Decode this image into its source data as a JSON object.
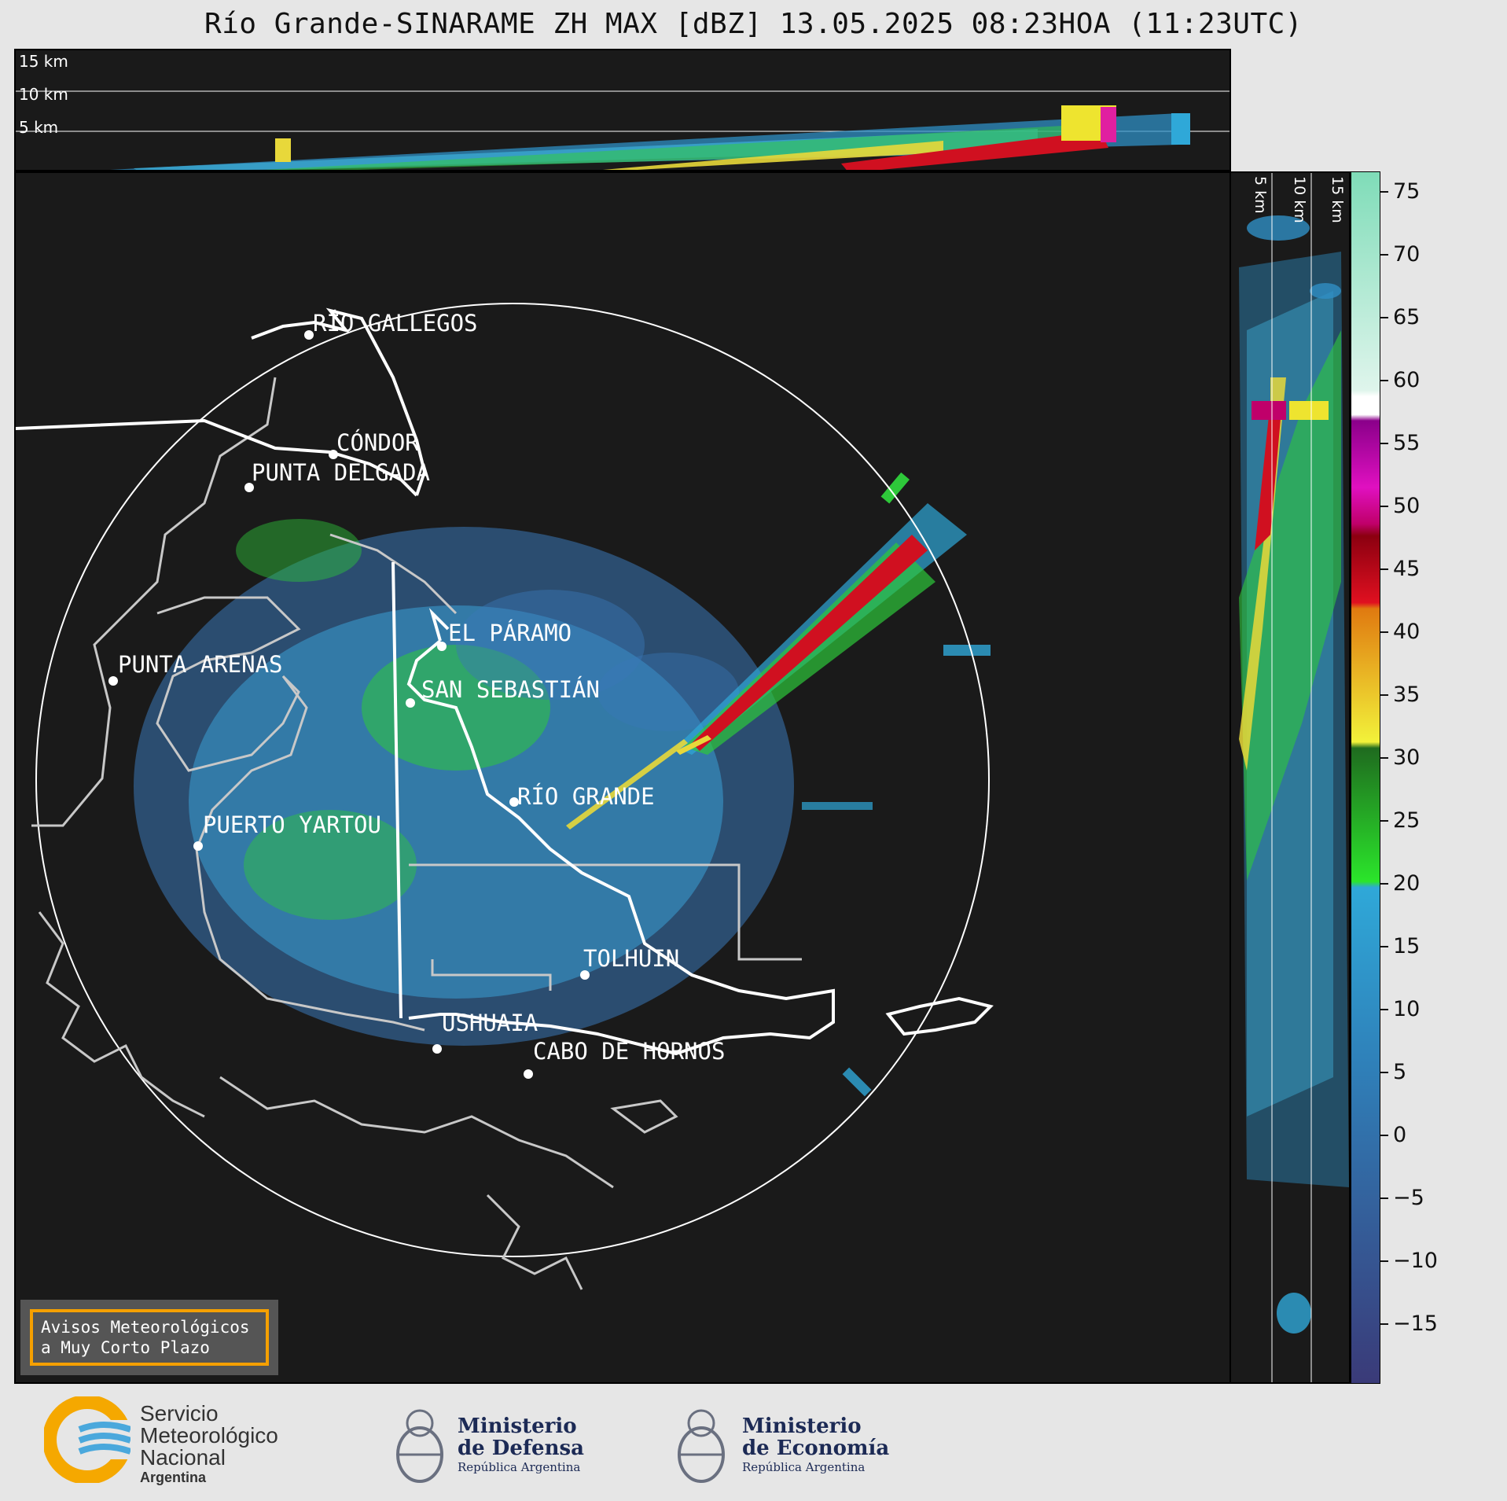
{
  "header": {
    "title": "Río Grande-SINARAME ZH MAX [dBZ] 13.05.2025 08:23HOA (11:23UTC)"
  },
  "top_panel": {
    "altitude_labels": [
      "15 km",
      "10 km",
      "5 km"
    ]
  },
  "side_panel": {
    "altitude_labels": [
      "5 km",
      "10 km",
      "15 km"
    ]
  },
  "colorbar": {
    "unit": "dBZ",
    "tick_labels": [
      "75",
      "70",
      "65",
      "60",
      "55",
      "50",
      "45",
      "40",
      "35",
      "30",
      "25",
      "20",
      "15",
      "10",
      "5",
      "0",
      "−5",
      "−10",
      "−15"
    ],
    "colors": {
      "range_neg20_to_18": "#3a4a88 → #2fa8d8",
      "range_18_to_30": "#2be52b → #1f6b1f",
      "range_30_to_43": "#f2f23a → #e07a10",
      "range_43_to_50": "#e01020 → #8b0010",
      "range_50_to_58": "#c0006a → #8a008a",
      "range_58_to_61": "#ffffff",
      "range_61_to_77": "#dff5ec → #7fdcb8"
    }
  },
  "map": {
    "cities": [
      {
        "name": "RÍO GALLEGOS"
      },
      {
        "name": "CÓNDOR"
      },
      {
        "name": "PUNTA DELGADA"
      },
      {
        "name": "EL PÁRAMO"
      },
      {
        "name": "PUNTA ARENAS"
      },
      {
        "name": "SAN SEBASTIÁN"
      },
      {
        "name": "RÍO GRANDE"
      },
      {
        "name": "PUERTO YARTOU"
      },
      {
        "name": "TOLHUIN"
      },
      {
        "name": "USHUAIA"
      },
      {
        "name": "CABO DE HORNOS"
      }
    ],
    "warning_box": {
      "line1": "Avisos Meteorológicos",
      "line2": "a Muy Corto Plazo"
    }
  },
  "footer": {
    "smn": {
      "line1": "Servicio",
      "line2": "Meteorológico",
      "line3": "Nacional",
      "line4": "Argentina"
    },
    "defensa": {
      "line1": "Ministerio",
      "line2": "de Defensa",
      "line3": "República Argentina"
    },
    "economia": {
      "line1": "Ministerio",
      "line2": "de Economía",
      "line3": "República Argentina"
    }
  }
}
